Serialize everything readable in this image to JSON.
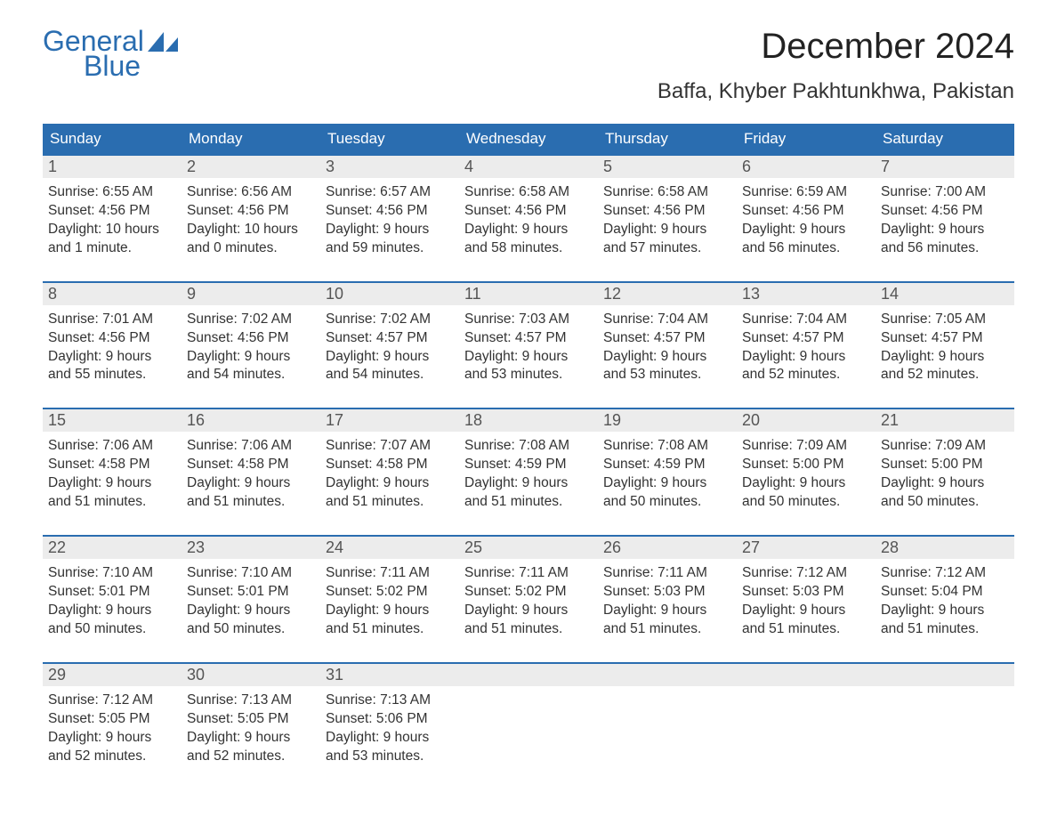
{
  "logo": {
    "text_top": "General",
    "text_bottom": "Blue"
  },
  "title": "December 2024",
  "location": "Baffa, Khyber Pakhtunkhwa, Pakistan",
  "colors": {
    "accent": "#2a6db0",
    "header_text": "#ffffff",
    "daynum_bg": "#ececec",
    "daynum_border": "#2a6db0",
    "body_text": "#333333",
    "daynum_text": "#555555",
    "bg": "#ffffff"
  },
  "typography": {
    "title_fontsize": 40,
    "location_fontsize": 24,
    "weekday_fontsize": 17,
    "daynum_fontsize": 18,
    "content_fontsize": 15.5
  },
  "weekdays": [
    "Sunday",
    "Monday",
    "Tuesday",
    "Wednesday",
    "Thursday",
    "Friday",
    "Saturday"
  ],
  "weeks": [
    [
      {
        "day": "1",
        "sunrise": "Sunrise: 6:55 AM",
        "sunset": "Sunset: 4:56 PM",
        "dl1": "Daylight: 10 hours",
        "dl2": "and 1 minute."
      },
      {
        "day": "2",
        "sunrise": "Sunrise: 6:56 AM",
        "sunset": "Sunset: 4:56 PM",
        "dl1": "Daylight: 10 hours",
        "dl2": "and 0 minutes."
      },
      {
        "day": "3",
        "sunrise": "Sunrise: 6:57 AM",
        "sunset": "Sunset: 4:56 PM",
        "dl1": "Daylight: 9 hours",
        "dl2": "and 59 minutes."
      },
      {
        "day": "4",
        "sunrise": "Sunrise: 6:58 AM",
        "sunset": "Sunset: 4:56 PM",
        "dl1": "Daylight: 9 hours",
        "dl2": "and 58 minutes."
      },
      {
        "day": "5",
        "sunrise": "Sunrise: 6:58 AM",
        "sunset": "Sunset: 4:56 PM",
        "dl1": "Daylight: 9 hours",
        "dl2": "and 57 minutes."
      },
      {
        "day": "6",
        "sunrise": "Sunrise: 6:59 AM",
        "sunset": "Sunset: 4:56 PM",
        "dl1": "Daylight: 9 hours",
        "dl2": "and 56 minutes."
      },
      {
        "day": "7",
        "sunrise": "Sunrise: 7:00 AM",
        "sunset": "Sunset: 4:56 PM",
        "dl1": "Daylight: 9 hours",
        "dl2": "and 56 minutes."
      }
    ],
    [
      {
        "day": "8",
        "sunrise": "Sunrise: 7:01 AM",
        "sunset": "Sunset: 4:56 PM",
        "dl1": "Daylight: 9 hours",
        "dl2": "and 55 minutes."
      },
      {
        "day": "9",
        "sunrise": "Sunrise: 7:02 AM",
        "sunset": "Sunset: 4:56 PM",
        "dl1": "Daylight: 9 hours",
        "dl2": "and 54 minutes."
      },
      {
        "day": "10",
        "sunrise": "Sunrise: 7:02 AM",
        "sunset": "Sunset: 4:57 PM",
        "dl1": "Daylight: 9 hours",
        "dl2": "and 54 minutes."
      },
      {
        "day": "11",
        "sunrise": "Sunrise: 7:03 AM",
        "sunset": "Sunset: 4:57 PM",
        "dl1": "Daylight: 9 hours",
        "dl2": "and 53 minutes."
      },
      {
        "day": "12",
        "sunrise": "Sunrise: 7:04 AM",
        "sunset": "Sunset: 4:57 PM",
        "dl1": "Daylight: 9 hours",
        "dl2": "and 53 minutes."
      },
      {
        "day": "13",
        "sunrise": "Sunrise: 7:04 AM",
        "sunset": "Sunset: 4:57 PM",
        "dl1": "Daylight: 9 hours",
        "dl2": "and 52 minutes."
      },
      {
        "day": "14",
        "sunrise": "Sunrise: 7:05 AM",
        "sunset": "Sunset: 4:57 PM",
        "dl1": "Daylight: 9 hours",
        "dl2": "and 52 minutes."
      }
    ],
    [
      {
        "day": "15",
        "sunrise": "Sunrise: 7:06 AM",
        "sunset": "Sunset: 4:58 PM",
        "dl1": "Daylight: 9 hours",
        "dl2": "and 51 minutes."
      },
      {
        "day": "16",
        "sunrise": "Sunrise: 7:06 AM",
        "sunset": "Sunset: 4:58 PM",
        "dl1": "Daylight: 9 hours",
        "dl2": "and 51 minutes."
      },
      {
        "day": "17",
        "sunrise": "Sunrise: 7:07 AM",
        "sunset": "Sunset: 4:58 PM",
        "dl1": "Daylight: 9 hours",
        "dl2": "and 51 minutes."
      },
      {
        "day": "18",
        "sunrise": "Sunrise: 7:08 AM",
        "sunset": "Sunset: 4:59 PM",
        "dl1": "Daylight: 9 hours",
        "dl2": "and 51 minutes."
      },
      {
        "day": "19",
        "sunrise": "Sunrise: 7:08 AM",
        "sunset": "Sunset: 4:59 PM",
        "dl1": "Daylight: 9 hours",
        "dl2": "and 50 minutes."
      },
      {
        "day": "20",
        "sunrise": "Sunrise: 7:09 AM",
        "sunset": "Sunset: 5:00 PM",
        "dl1": "Daylight: 9 hours",
        "dl2": "and 50 minutes."
      },
      {
        "day": "21",
        "sunrise": "Sunrise: 7:09 AM",
        "sunset": "Sunset: 5:00 PM",
        "dl1": "Daylight: 9 hours",
        "dl2": "and 50 minutes."
      }
    ],
    [
      {
        "day": "22",
        "sunrise": "Sunrise: 7:10 AM",
        "sunset": "Sunset: 5:01 PM",
        "dl1": "Daylight: 9 hours",
        "dl2": "and 50 minutes."
      },
      {
        "day": "23",
        "sunrise": "Sunrise: 7:10 AM",
        "sunset": "Sunset: 5:01 PM",
        "dl1": "Daylight: 9 hours",
        "dl2": "and 50 minutes."
      },
      {
        "day": "24",
        "sunrise": "Sunrise: 7:11 AM",
        "sunset": "Sunset: 5:02 PM",
        "dl1": "Daylight: 9 hours",
        "dl2": "and 51 minutes."
      },
      {
        "day": "25",
        "sunrise": "Sunrise: 7:11 AM",
        "sunset": "Sunset: 5:02 PM",
        "dl1": "Daylight: 9 hours",
        "dl2": "and 51 minutes."
      },
      {
        "day": "26",
        "sunrise": "Sunrise: 7:11 AM",
        "sunset": "Sunset: 5:03 PM",
        "dl1": "Daylight: 9 hours",
        "dl2": "and 51 minutes."
      },
      {
        "day": "27",
        "sunrise": "Sunrise: 7:12 AM",
        "sunset": "Sunset: 5:03 PM",
        "dl1": "Daylight: 9 hours",
        "dl2": "and 51 minutes."
      },
      {
        "day": "28",
        "sunrise": "Sunrise: 7:12 AM",
        "sunset": "Sunset: 5:04 PM",
        "dl1": "Daylight: 9 hours",
        "dl2": "and 51 minutes."
      }
    ],
    [
      {
        "day": "29",
        "sunrise": "Sunrise: 7:12 AM",
        "sunset": "Sunset: 5:05 PM",
        "dl1": "Daylight: 9 hours",
        "dl2": "and 52 minutes."
      },
      {
        "day": "30",
        "sunrise": "Sunrise: 7:13 AM",
        "sunset": "Sunset: 5:05 PM",
        "dl1": "Daylight: 9 hours",
        "dl2": "and 52 minutes."
      },
      {
        "day": "31",
        "sunrise": "Sunrise: 7:13 AM",
        "sunset": "Sunset: 5:06 PM",
        "dl1": "Daylight: 9 hours",
        "dl2": "and 53 minutes."
      },
      {
        "day": "",
        "sunrise": "",
        "sunset": "",
        "dl1": "",
        "dl2": ""
      },
      {
        "day": "",
        "sunrise": "",
        "sunset": "",
        "dl1": "",
        "dl2": ""
      },
      {
        "day": "",
        "sunrise": "",
        "sunset": "",
        "dl1": "",
        "dl2": ""
      },
      {
        "day": "",
        "sunrise": "",
        "sunset": "",
        "dl1": "",
        "dl2": ""
      }
    ]
  ]
}
